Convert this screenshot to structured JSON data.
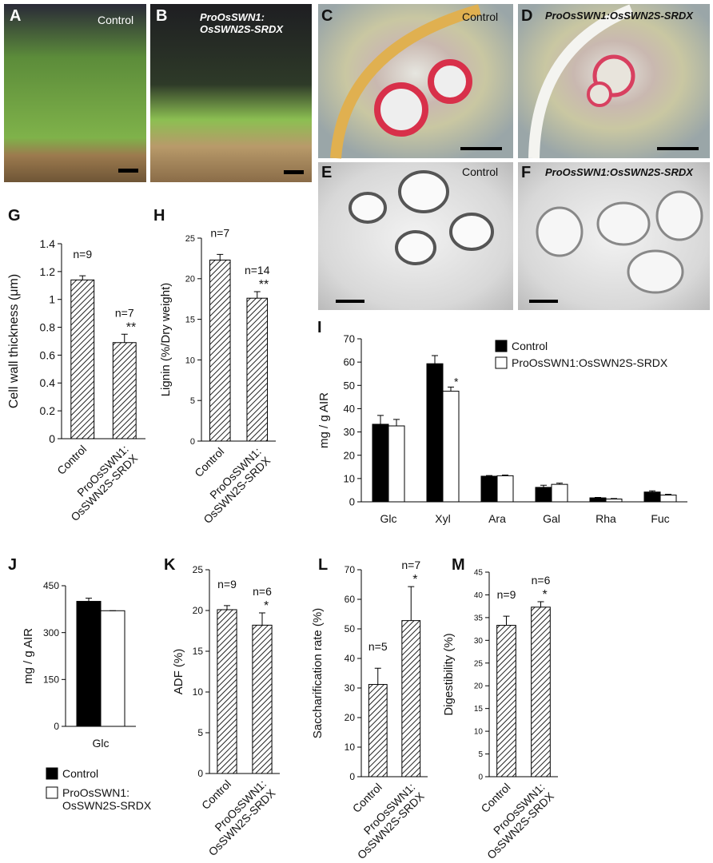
{
  "photos": [
    {
      "letter": "A",
      "caption": "Control"
    },
    {
      "letter": "B",
      "caption": "ProOsSWN1:\nOsSWN2S-SRDX"
    },
    {
      "letter": "C",
      "caption": "Control"
    },
    {
      "letter": "D",
      "caption": "ProOsSWN1:OsSWN2S-SRDX"
    },
    {
      "letter": "E",
      "caption": "Control"
    },
    {
      "letter": "F",
      "caption": "ProOsSWN1:OsSWN2S-SRDX"
    }
  ],
  "chart_data": [
    {
      "type": "bar",
      "panel": "G",
      "ylabel": "Cell wall thickness (μm)",
      "categories": [
        "Control",
        "ProOsSWN1:\nOsSWN2S-SRDX"
      ],
      "values": [
        1.14,
        0.69
      ],
      "errors": [
        0.03,
        0.06
      ],
      "n_labels": [
        "n=9",
        "n=7"
      ],
      "sig_labels": [
        null,
        "**"
      ],
      "ylim": [
        0,
        1.4
      ],
      "yticks": [
        0,
        0.2,
        0.4,
        0.6,
        0.8,
        1,
        1.2,
        1.4
      ],
      "fill": "hatch"
    },
    {
      "type": "bar",
      "panel": "H",
      "ylabel": "Lignin (%/Dry weight)",
      "categories": [
        "Control",
        "ProOsSWN1:\nOsSWN2S-SRDX"
      ],
      "values": [
        22.3,
        17.6
      ],
      "errors": [
        0.7,
        0.8
      ],
      "n_labels": [
        "n=7",
        "n=14"
      ],
      "sig_labels": [
        null,
        "**"
      ],
      "ylim": [
        0,
        25
      ],
      "yticks": [
        0,
        5,
        10,
        15,
        20,
        25
      ],
      "fill": "hatch"
    },
    {
      "type": "grouped_bar",
      "panel": "I",
      "ylabel": "mg / g AIR",
      "categories": [
        "Glc",
        "Xyl",
        "Ara",
        "Gal",
        "Rha",
        "Fuc"
      ],
      "series": [
        {
          "name": "Control",
          "color": "#000000",
          "values": [
            33.3,
            59.3,
            11,
            6.2,
            1.7,
            4.2
          ],
          "errors": [
            3.8,
            3.5,
            0.3,
            0.9,
            0.2,
            0.5
          ],
          "sig_labels": [
            null,
            null,
            null,
            null,
            null,
            null
          ]
        },
        {
          "name": "ProOsSWN1:OsSWN2S-SRDX",
          "color": "#ffffff",
          "values": [
            32.6,
            47.5,
            11.2,
            7.5,
            1.2,
            2.9
          ],
          "errors": [
            2.8,
            1.8,
            0.3,
            0.5,
            0.2,
            0.3
          ],
          "sig_labels": [
            null,
            "*",
            null,
            null,
            null,
            null
          ]
        }
      ],
      "ylim": [
        0,
        70
      ],
      "yticks": [
        0,
        10,
        20,
        30,
        40,
        50,
        60,
        70
      ]
    },
    {
      "type": "grouped_bar",
      "panel": "J",
      "ylabel": "mg / g AIR",
      "categories": [
        "Glc"
      ],
      "series": [
        {
          "name": "Control",
          "color": "#000000",
          "values": [
            400
          ],
          "errors": [
            10
          ],
          "sig_labels": [
            null
          ]
        },
        {
          "name": "ProOsSWN1:\nOsSWN2S-SRDX",
          "color": "#ffffff",
          "values": [
            370
          ],
          "errors": [
            0
          ],
          "sig_labels": [
            null
          ]
        }
      ],
      "ylim": [
        0,
        450
      ],
      "yticks": [
        0,
        150,
        300,
        450
      ]
    },
    {
      "type": "bar",
      "panel": "K",
      "ylabel": "ADF (%)",
      "categories": [
        "Control",
        "ProOsSWN1:\nOsSWN2S-SRDX"
      ],
      "values": [
        20.1,
        18.2
      ],
      "errors": [
        0.5,
        1.5
      ],
      "n_labels": [
        "n=9",
        "n=6"
      ],
      "sig_labels": [
        null,
        "*"
      ],
      "ylim": [
        0,
        25
      ],
      "yticks": [
        0,
        5,
        10,
        15,
        20,
        25
      ],
      "fill": "hatch"
    },
    {
      "type": "bar",
      "panel": "L",
      "ylabel": "Saccharification rate (%)",
      "categories": [
        "Control",
        "ProOsSWN1:\nOsSWN2S-SRDX"
      ],
      "values": [
        31.2,
        52.8
      ],
      "errors": [
        5.5,
        11.5
      ],
      "n_labels": [
        "n=5",
        "n=7"
      ],
      "sig_labels": [
        null,
        "*"
      ],
      "ylim": [
        0,
        70
      ],
      "yticks": [
        0,
        10,
        20,
        30,
        40,
        50,
        60,
        70
      ],
      "fill": "hatch"
    },
    {
      "type": "bar",
      "panel": "M",
      "ylabel": "Digestibility (%)",
      "categories": [
        "Control",
        "ProOsSWN1:\nOsSWN2S-SRDX"
      ],
      "values": [
        33.3,
        37.3
      ],
      "errors": [
        2,
        1.2
      ],
      "n_labels": [
        "n=9",
        "n=6"
      ],
      "sig_labels": [
        null,
        "*"
      ],
      "ylim": [
        0,
        45
      ],
      "yticks": [
        0,
        5,
        10,
        15,
        20,
        25,
        30,
        35,
        40,
        45
      ],
      "fill": "hatch"
    }
  ]
}
